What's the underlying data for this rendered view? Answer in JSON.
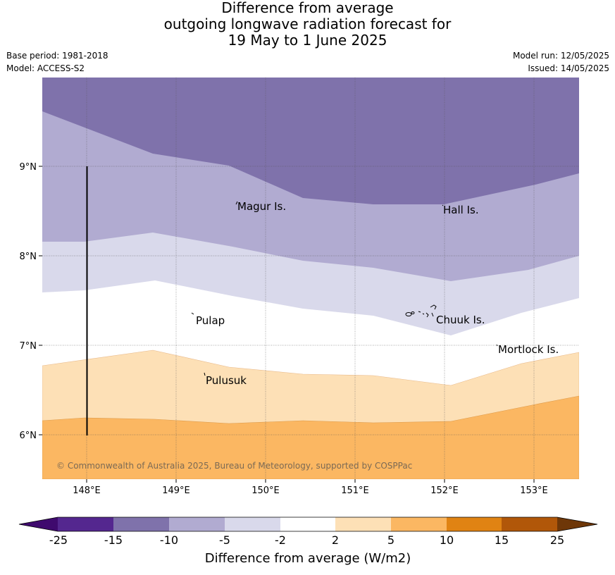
{
  "title": {
    "line1": "Difference from average",
    "line2": "outgoing longwave radiation forecast for",
    "line3": "19 May to 1 June 2025"
  },
  "meta": {
    "base_period": "Base period: 1981-2018",
    "model": "Model: ACCESS-S2",
    "model_run": "Model run: 12/05/2025",
    "issued": "Issued: 14/05/2025"
  },
  "map": {
    "lon_ticks": [
      "148°E",
      "149°E",
      "150°E",
      "151°E",
      "152°E",
      "153°E"
    ],
    "lat_ticks": [
      "9°N",
      "8°N",
      "7°N",
      "6°N"
    ],
    "copyright": "© Commonwealth of Australia 2025, Bureau of Meteorology, supported by COSPPac",
    "places": [
      {
        "name": "Magur Is."
      },
      {
        "name": "Hall Is."
      },
      {
        "name": "Pulap"
      },
      {
        "name": "Chuuk Is."
      },
      {
        "name": "Mortlock Is."
      },
      {
        "name": "Pulusuk"
      }
    ]
  },
  "colorbar": {
    "ticks": [
      "-25",
      "-15",
      "-10",
      "-5",
      "-2",
      "2",
      "5",
      "10",
      "15",
      "25"
    ],
    "colors": [
      "#3f0a6e",
      "#54278f",
      "#7f72ab",
      "#b1abd1",
      "#d9d9eb",
      "#ffffff",
      "#fde0b6",
      "#fbb762",
      "#e08313",
      "#b15709",
      "#6e3708"
    ],
    "label": "Difference from average (W/m2)"
  }
}
